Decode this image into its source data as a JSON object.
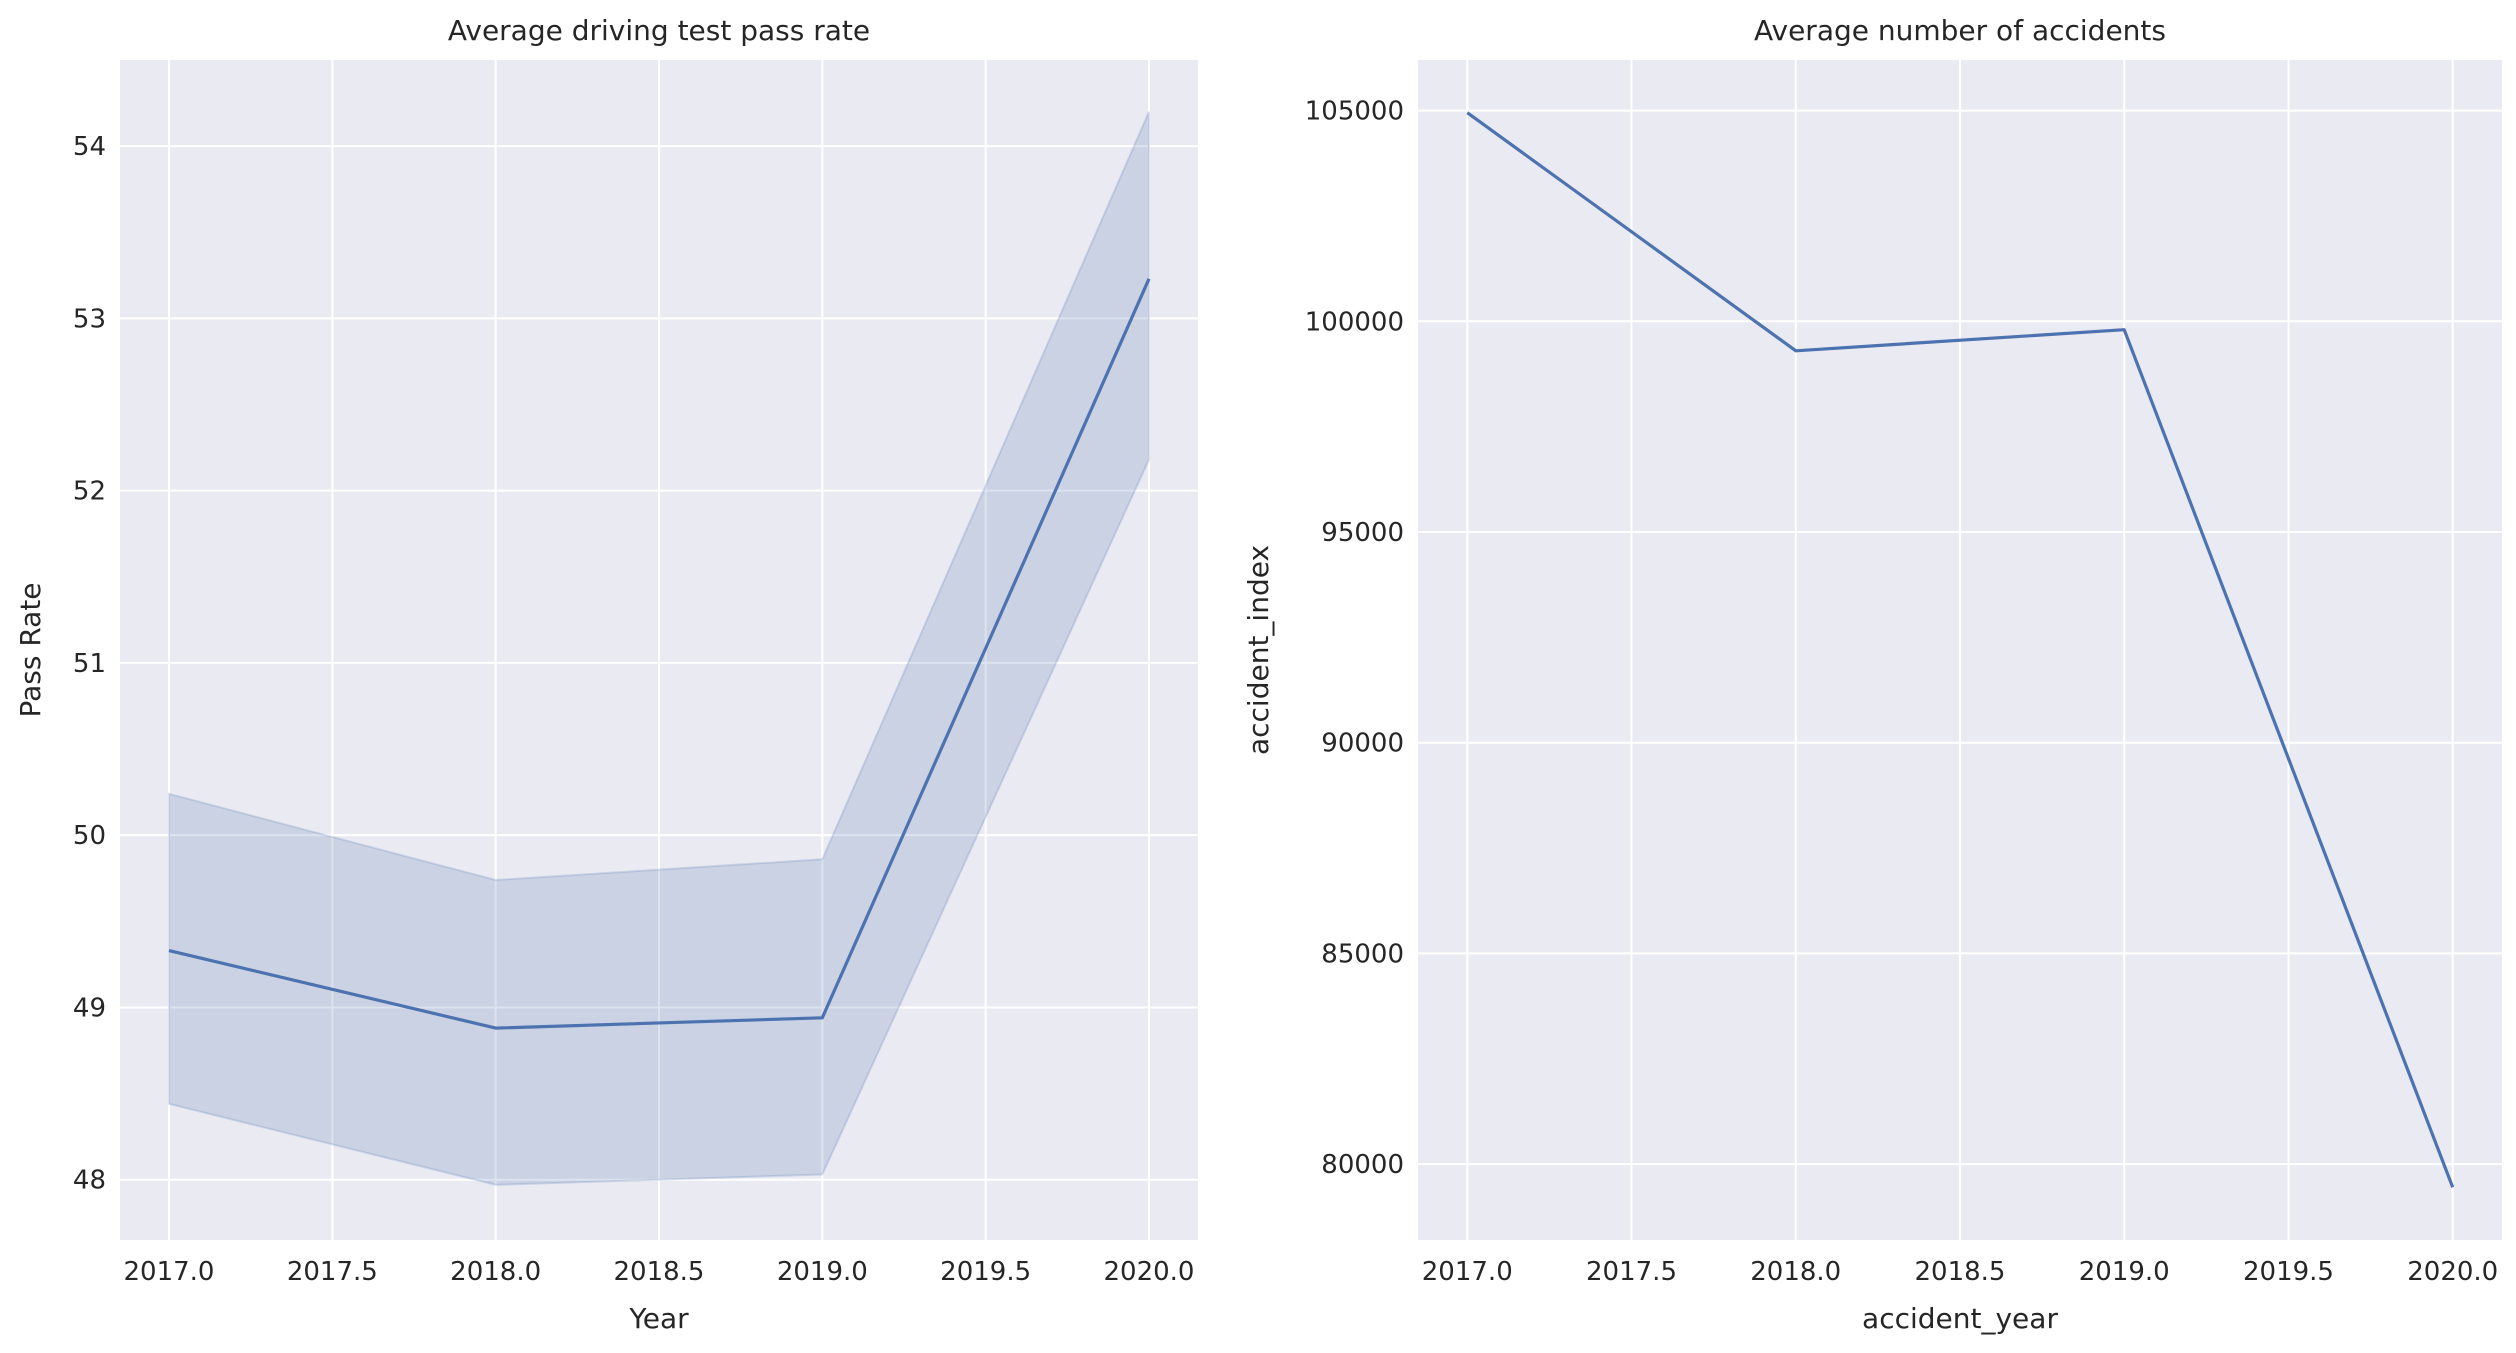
{
  "chart_data": [
    {
      "type": "line",
      "title": "Average driving test pass rate",
      "xlabel": "Year",
      "ylabel": "Pass Rate",
      "x": [
        2017,
        2018,
        2019,
        2020
      ],
      "series": [
        {
          "values": [
            49.33,
            48.88,
            48.94,
            53.23
          ],
          "ci_lower": [
            48.44,
            47.97,
            48.03,
            52.18
          ],
          "ci_upper": [
            50.24,
            49.74,
            49.86,
            54.2
          ]
        }
      ],
      "xlim": [
        2016.85,
        2020.15
      ],
      "ylim": [
        47.65,
        54.5
      ],
      "xticks": [
        2017.0,
        2017.5,
        2018.0,
        2018.5,
        2019.0,
        2019.5,
        2020.0
      ],
      "xtick_labels": [
        "2017.0",
        "2017.5",
        "2018.0",
        "2018.5",
        "2019.0",
        "2019.5",
        "2020.0"
      ],
      "yticks": [
        48,
        49,
        50,
        51,
        52,
        53,
        54
      ],
      "ytick_labels": [
        "48",
        "49",
        "50",
        "51",
        "52",
        "53",
        "54"
      ],
      "grid": true
    },
    {
      "type": "line",
      "title": "Average number of accidents",
      "xlabel": "accident_year",
      "ylabel": "accident_index",
      "x": [
        2017,
        2018,
        2019,
        2020
      ],
      "series": [
        {
          "values": [
            104950,
            99300,
            99800,
            79450
          ]
        }
      ],
      "xlim": [
        2016.85,
        2020.15
      ],
      "ylim": [
        78200,
        106200
      ],
      "xticks": [
        2017.0,
        2017.5,
        2018.0,
        2018.5,
        2019.0,
        2019.5,
        2020.0
      ],
      "xtick_labels": [
        "2017.0",
        "2017.5",
        "2018.0",
        "2018.5",
        "2019.0",
        "2019.5",
        "2020.0"
      ],
      "yticks": [
        80000,
        85000,
        90000,
        95000,
        100000,
        105000
      ],
      "ytick_labels": [
        "80000",
        "85000",
        "90000",
        "95000",
        "100000",
        "105000"
      ],
      "grid": true
    }
  ],
  "colors": {
    "line": "#4c72b0",
    "band": "#4c72b0",
    "axes_bg": "#eaeaf2",
    "grid": "#ffffff",
    "text": "#262626"
  }
}
